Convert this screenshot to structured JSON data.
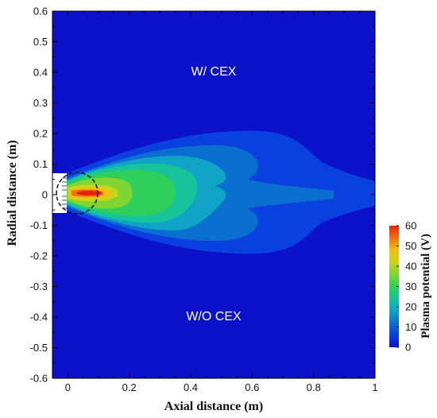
{
  "chart_data": {
    "type": "heatmap",
    "title": "",
    "xlabel": "Axial distance (m)",
    "ylabel": "Radial distance (m)",
    "xlim": [
      -0.05,
      1.0
    ],
    "ylim": [
      -0.6,
      0.6
    ],
    "x_ticks": [
      0,
      0.2,
      0.4,
      0.6,
      0.8,
      1
    ],
    "x_tick_labels": [
      "0",
      "0.2",
      "0.4",
      "0.6",
      "0.8",
      "1"
    ],
    "y_ticks": [
      0.6,
      0.5,
      0.4,
      0.3,
      0.2,
      0.1,
      0,
      -0.1,
      -0.2,
      -0.3,
      -0.4,
      -0.5,
      -0.6
    ],
    "y_tick_labels": [
      "0.6",
      "0.5",
      "0.4",
      "0.3",
      "0.2",
      "0.1",
      "0",
      "-0.1",
      "-0.2",
      "-0.3",
      "-0.4",
      "-0.5",
      "-0.6"
    ],
    "colorbar": {
      "title": "Plasma potential (V)",
      "min": 0,
      "max": 60,
      "ticks": [
        60,
        50,
        40,
        30,
        20,
        10,
        0
      ],
      "tick_labels": [
        "60",
        "50",
        "40",
        "30",
        "20",
        "10",
        "0"
      ],
      "colors": [
        "#0b12c9",
        "#0a3fe0",
        "#0b6fd0",
        "#10a3c8",
        "#16c39a",
        "#2ecf5a",
        "#7fd630",
        "#c9d41a",
        "#f0c010",
        "#f07010",
        "#e8200c"
      ],
      "position": "right"
    },
    "annotations": [
      "W/ CEX",
      "W/O CEX"
    ],
    "background_color": "#0b12c9",
    "grid": false
  }
}
